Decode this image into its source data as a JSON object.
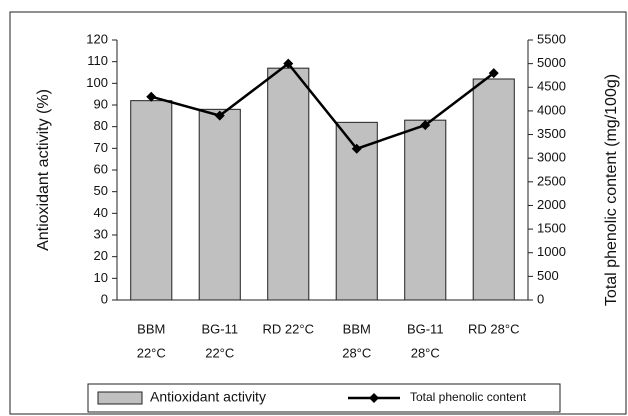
{
  "chart_data": {
    "type": "bar_line",
    "ylabel": "Antioxidant activity (%)",
    "y2label": "Total phenolic content (mg/100g)",
    "categories": [
      [
        "BBM",
        "22°C"
      ],
      [
        "BG-11",
        "22°C"
      ],
      [
        "RD 22°C"
      ],
      [
        "BBM",
        "28°C"
      ],
      [
        "BG-11",
        "28°C"
      ],
      [
        "RD 28°C"
      ]
    ],
    "series": [
      {
        "name": "Antioxidant activity",
        "type": "bar",
        "color": "#c0c0c0",
        "values": [
          92,
          88,
          107,
          82,
          83,
          102
        ]
      },
      {
        "name": "Total phenolic content",
        "type": "line",
        "axis": "y2",
        "color": "#000000",
        "values": [
          4300,
          3900,
          5000,
          3200,
          3700,
          4800
        ]
      }
    ],
    "ylim": [
      0,
      120
    ],
    "yticks": [
      0,
      10,
      20,
      30,
      40,
      50,
      60,
      70,
      80,
      90,
      100,
      110,
      120
    ],
    "y2lim": [
      0,
      5500
    ],
    "y2ticks": [
      0,
      500,
      1000,
      1500,
      2000,
      2500,
      3000,
      3500,
      4000,
      4500,
      5000,
      5500
    ]
  }
}
